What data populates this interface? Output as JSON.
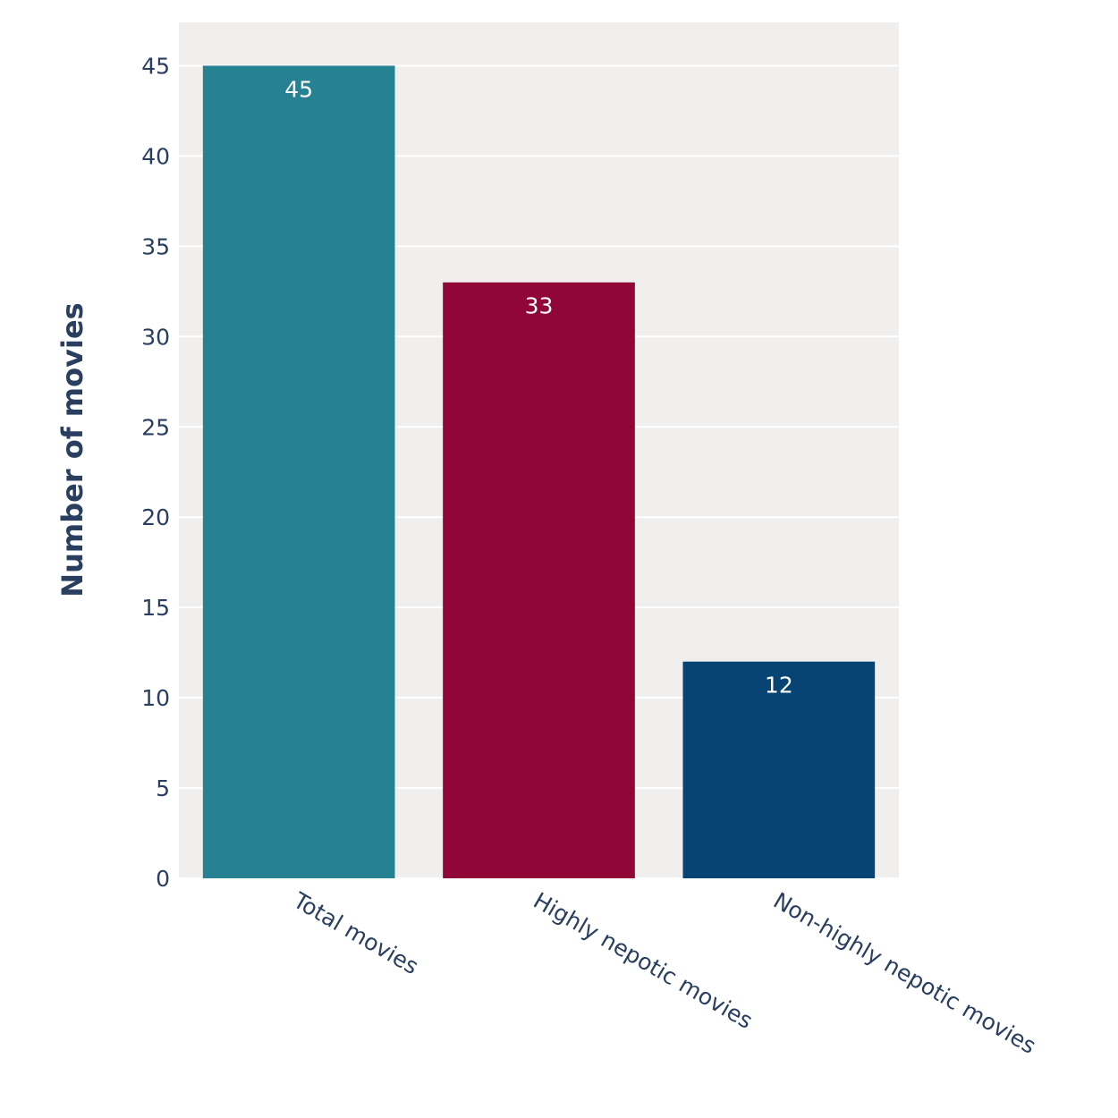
{
  "chart_data": {
    "type": "bar",
    "y_label": "Number of movies",
    "categories": [
      "Total movies",
      "Highly nepotic movies",
      "Non-highly nepotic movies"
    ],
    "values": [
      45,
      33,
      12
    ],
    "colors": [
      "#268193",
      "#8f0637",
      "#074373"
    ],
    "ylim": [
      0,
      47.4
    ],
    "yticks": [
      0,
      5,
      10,
      15,
      20,
      25,
      30,
      35,
      40,
      45
    ],
    "grid": true
  }
}
